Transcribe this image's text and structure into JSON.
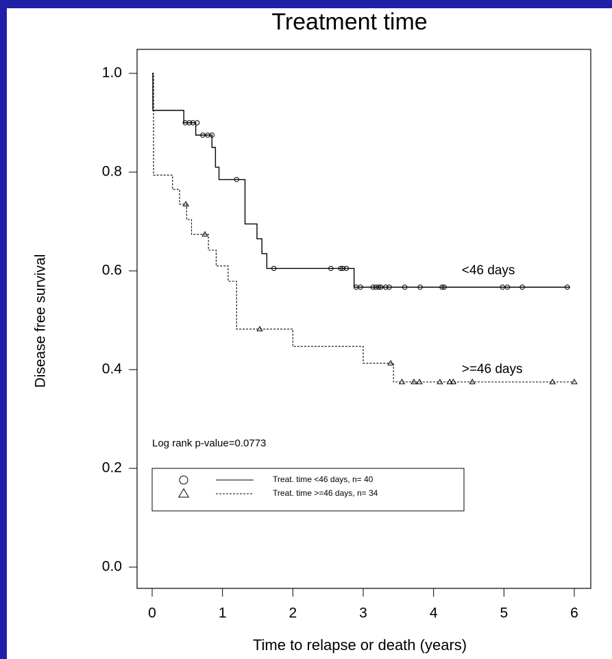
{
  "chart_data": {
    "type": "step",
    "title": "Treatment time",
    "x_label": "Time to relapse or death (years)",
    "y_label": "Disease free survival",
    "xlim": [
      0,
      6
    ],
    "ylim": [
      0,
      1
    ],
    "xticks": [
      0,
      1,
      2,
      3,
      4,
      5,
      6
    ],
    "yticks": [
      {
        "value": 0,
        "label": "0.0"
      },
      0.2,
      0.4,
      0.6,
      0.8,
      {
        "value": 1,
        "label": "1.0"
      }
    ],
    "annotations": [
      {
        "text": "<46 days",
        "x": 4.4,
        "y": 0.6
      },
      {
        "text": ">=46 days",
        "x": 4.4,
        "y": 0.4
      },
      {
        "text": "Log rank p-value=0.0773",
        "x": 0,
        "y": 0.25
      }
    ],
    "series": [
      {
        "name": "Treat. time <46 days, n= 40",
        "color": "#000000",
        "line_style": "solid",
        "marker": "circle",
        "x": [
          0,
          0.01,
          0.45,
          0.62,
          0.85,
          0.9,
          0.95,
          1.32,
          1.49,
          1.56,
          1.63,
          2.87,
          5.94
        ],
        "values": [
          1.0,
          0.925,
          0.9,
          0.875,
          0.85,
          0.81,
          0.785,
          0.695,
          0.665,
          0.635,
          0.605,
          0.567,
          0.567
        ],
        "censor_x": [
          0.47,
          0.53,
          0.58,
          0.64,
          0.72,
          0.79,
          0.85,
          1.2,
          1.73,
          2.54,
          2.68,
          2.71,
          2.76,
          2.9,
          2.96,
          3.14,
          3.18,
          3.22,
          3.25,
          3.32,
          3.37,
          3.59,
          3.81,
          4.12,
          4.15,
          4.98,
          5.05,
          5.26,
          5.9
        ],
        "censor_values": [
          0.9,
          0.9,
          0.9,
          0.9,
          0.875,
          0.875,
          0.875,
          0.785,
          0.605,
          0.605,
          0.605,
          0.605,
          0.605,
          0.567,
          0.567,
          0.567,
          0.567,
          0.567,
          0.567,
          0.567,
          0.567,
          0.567,
          0.567,
          0.567,
          0.567,
          0.567,
          0.567,
          0.567,
          0.567
        ]
      },
      {
        "name": "Treat. time >=46 days, n= 34",
        "color": "#000000",
        "line_style": "dotted",
        "marker": "triangle",
        "x": [
          0,
          0.02,
          0.29,
          0.39,
          0.49,
          0.56,
          0.8,
          0.91,
          1.08,
          1.2,
          2.0,
          3.0,
          3.43,
          6.0
        ],
        "values": [
          1.0,
          0.794,
          0.765,
          0.735,
          0.704,
          0.674,
          0.642,
          0.61,
          0.579,
          0.482,
          0.447,
          0.413,
          0.375,
          0.375
        ],
        "censor_x": [
          0.48,
          0.75,
          1.53,
          3.39,
          3.55,
          3.72,
          3.8,
          4.09,
          4.23,
          4.28,
          4.55,
          5.69,
          6.0
        ],
        "censor_values": [
          0.735,
          0.674,
          0.482,
          0.413,
          0.375,
          0.375,
          0.375,
          0.375,
          0.375,
          0.375,
          0.375,
          0.375,
          0.375
        ]
      }
    ]
  }
}
